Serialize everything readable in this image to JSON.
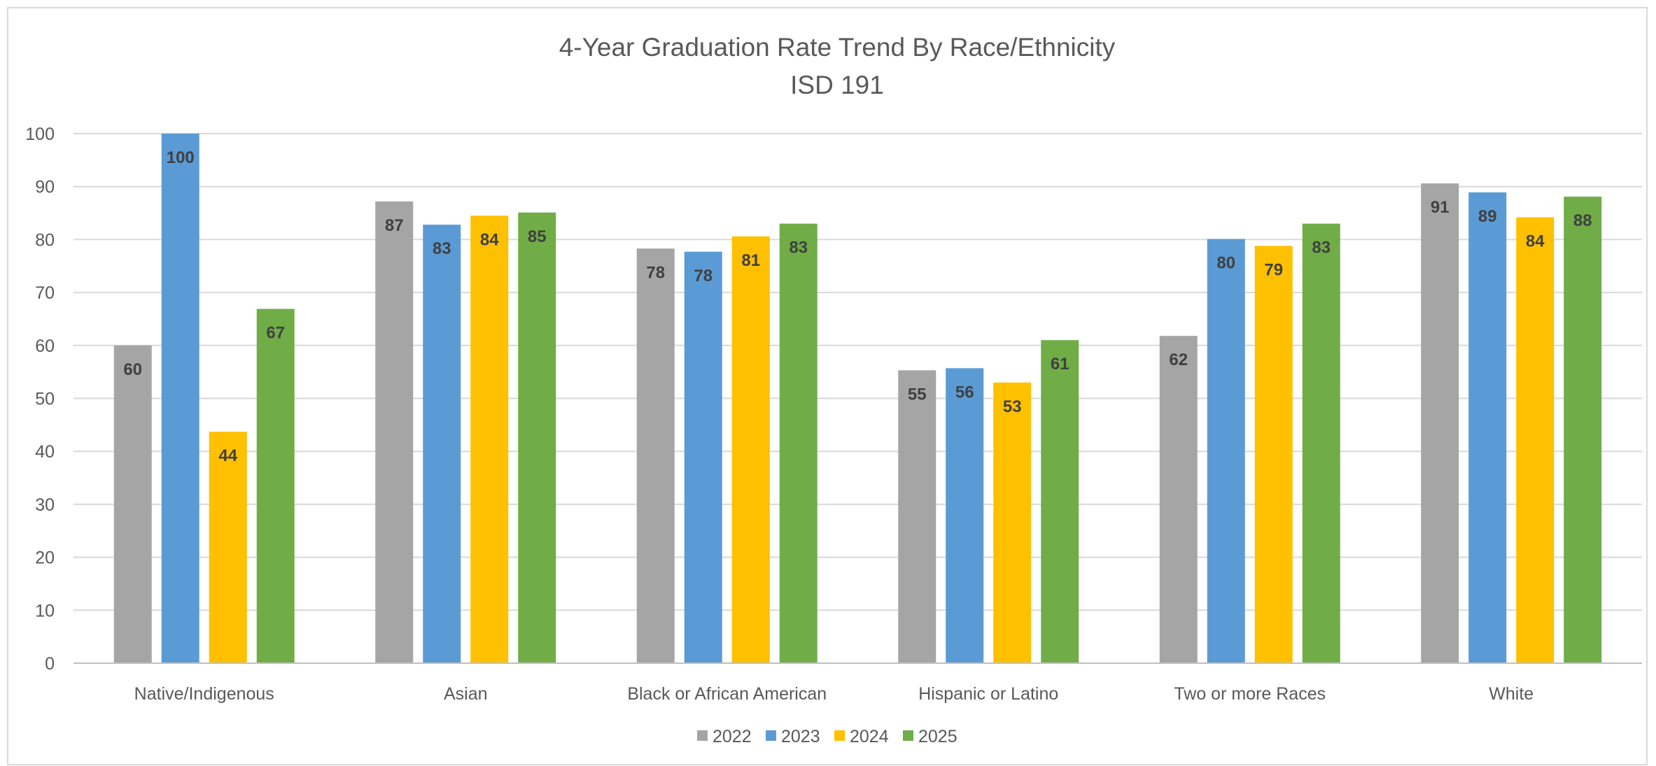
{
  "chart_data": {
    "type": "bar",
    "title": "4-Year Graduation Rate Trend By Race/Ethnicity",
    "subtitle": "ISD 191",
    "xlabel": "",
    "ylabel": "",
    "ylim": [
      0,
      100
    ],
    "yticks": [
      0,
      10,
      20,
      30,
      40,
      50,
      60,
      70,
      80,
      90,
      100
    ],
    "grid": true,
    "legend_position": "bottom",
    "categories": [
      "Native/Indigenous",
      "Asian",
      "Black or African American",
      "Hispanic or Latino",
      "Two or more Races",
      "White"
    ],
    "series": [
      {
        "name": "2022",
        "color": "#a5a5a5",
        "values": [
          60,
          87.2,
          78.3,
          55.3,
          61.8,
          90.6
        ],
        "labels": [
          "60",
          "87",
          "78",
          "55",
          "62",
          "91"
        ]
      },
      {
        "name": "2023",
        "color": "#5b9bd5",
        "values": [
          100,
          82.8,
          77.7,
          55.7,
          80.1,
          88.9
        ],
        "labels": [
          "100",
          "83",
          "78",
          "56",
          "80",
          "89"
        ]
      },
      {
        "name": "2024",
        "color": "#ffc000",
        "values": [
          43.7,
          84.5,
          80.6,
          53.0,
          78.8,
          84.2
        ],
        "labels": [
          "44",
          "84",
          "81",
          "53",
          "79",
          "84"
        ]
      },
      {
        "name": "2025",
        "color": "#70ad47",
        "values": [
          66.9,
          85.1,
          83.0,
          61.0,
          83.0,
          88.1
        ],
        "labels": [
          "67",
          "85",
          "83",
          "61",
          "83",
          "88"
        ]
      }
    ]
  }
}
